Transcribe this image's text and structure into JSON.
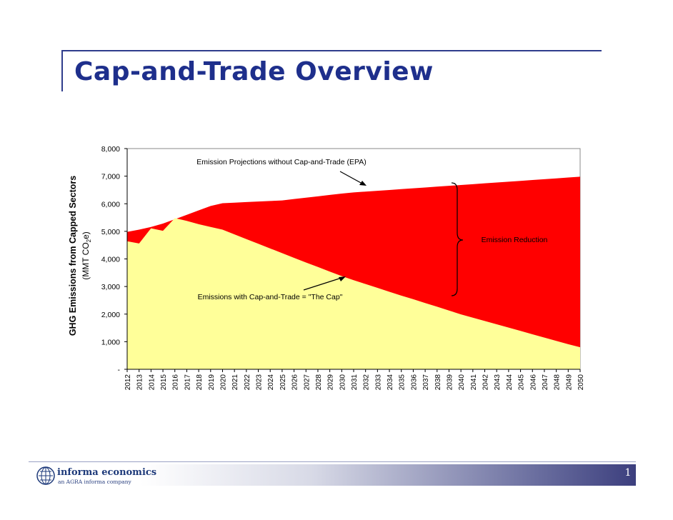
{
  "slide": {
    "title": "Cap-and-Trade Overview",
    "page_number": "1"
  },
  "logo": {
    "name": "informa economics",
    "tagline": "an AGRA informa company"
  },
  "colors": {
    "title": "#1e2f8c",
    "projection_fill": "#ff0000",
    "cap_fill": "#ffff99",
    "plot_background": "#ffffff"
  },
  "chart_data": {
    "type": "area",
    "title": "",
    "ylabel_line1": "GHG Emissions from Capped Sectors",
    "ylabel_line2": "(MMT CO2e)",
    "xlabel": "",
    "ylim": [
      0,
      8000
    ],
    "yticks": [
      0,
      1000,
      2000,
      3000,
      4000,
      5000,
      6000,
      7000,
      8000
    ],
    "ytick_labels": [
      "-",
      "1,000",
      "2,000",
      "3,000",
      "4,000",
      "5,000",
      "6,000",
      "7,000",
      "8,000"
    ],
    "x": [
      "2012",
      "2013",
      "2014",
      "2015",
      "2016",
      "2017",
      "2018",
      "2019",
      "2020",
      "2021",
      "2022",
      "2023",
      "2024",
      "2025",
      "2026",
      "2027",
      "2028",
      "2029",
      "2030",
      "2031",
      "2032",
      "2033",
      "2034",
      "2035",
      "2036",
      "2037",
      "2038",
      "2039",
      "2040",
      "2041",
      "2042",
      "2043",
      "2044",
      "2045",
      "2046",
      "2047",
      "2048",
      "2049",
      "2050"
    ],
    "series": [
      {
        "name": "Emission Projections without Cap-and-Trade (EPA)",
        "color": "#ff0000",
        "values": [
          4980,
          5060,
          5160,
          5280,
          5440,
          5600,
          5760,
          5920,
          6020,
          6040,
          6060,
          6080,
          6100,
          6120,
          6170,
          6220,
          6270,
          6320,
          6370,
          6410,
          6440,
          6470,
          6500,
          6530,
          6560,
          6590,
          6620,
          6650,
          6680,
          6710,
          6740,
          6770,
          6800,
          6830,
          6860,
          6890,
          6920,
          6950,
          6980
        ]
      },
      {
        "name": "Emissions with Cap-and-Trade = \"The Cap\"",
        "color": "#ffff99",
        "values": [
          4640,
          4560,
          5110,
          5020,
          5480,
          5380,
          5260,
          5160,
          5060,
          4890,
          4720,
          4550,
          4380,
          4210,
          4040,
          3870,
          3710,
          3540,
          3380,
          3230,
          3090,
          2950,
          2810,
          2670,
          2540,
          2400,
          2270,
          2130,
          1990,
          1870,
          1750,
          1630,
          1510,
          1390,
          1270,
          1150,
          1030,
          910,
          800
        ]
      }
    ],
    "annotations": {
      "projection_label": "Emission Projections without Cap-and-Trade (EPA)",
      "cap_label": "Emissions with Cap-and-Trade = \"The Cap\"",
      "reduction_label": "Emission Reduction"
    },
    "grid": false,
    "legend": "none"
  }
}
